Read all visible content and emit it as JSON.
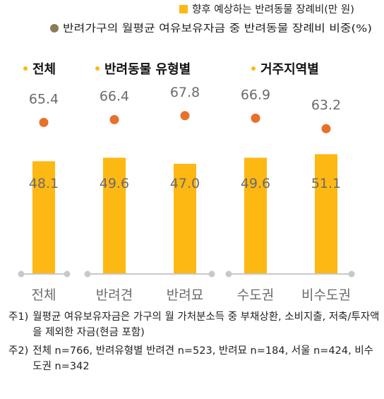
{
  "colors": {
    "bar": "#FDB813",
    "dot": "#E8702A",
    "legend_dot": "#8B7B5A",
    "group_dot": "#FDB813",
    "axis": "#C8C8C8",
    "label_text": "#6B6B6B"
  },
  "chart_data": {
    "type": "bar",
    "categories": [
      "전체",
      "반려견",
      "반려묘",
      "수도권",
      "비수도권"
    ],
    "series": [
      {
        "name": "향후 예상하는 반려동물 장례비(만 원)",
        "type": "bar",
        "values": [
          48.1,
          49.6,
          47.0,
          49.6,
          51.1
        ]
      },
      {
        "name": "반려가구의 월평균 여유보유자금 중 반려동물 장례비 비중(%)",
        "type": "dot",
        "values": [
          65.4,
          66.4,
          67.8,
          66.9,
          63.2
        ]
      }
    ],
    "groups": [
      {
        "label": "전체",
        "categories": [
          0
        ]
      },
      {
        "label": "반려동물 유형별",
        "categories": [
          1,
          2
        ]
      },
      {
        "label": "거주지역별",
        "categories": [
          3,
          4
        ]
      }
    ],
    "legend_position": "top-right"
  },
  "notes": [
    {
      "num": "주1)",
      "text": "월평균 여유보유자금은 가구의 월 가처분소득 중 부채상환, 소비지출, 저축/투자액을 제외한 자금(현금 포함)"
    },
    {
      "num": "주2)",
      "text": "전체 n=766, 반려유형별 반려견 n=523, 반려묘 n=184, 서울 n=424, 비수도권 n=342"
    }
  ]
}
